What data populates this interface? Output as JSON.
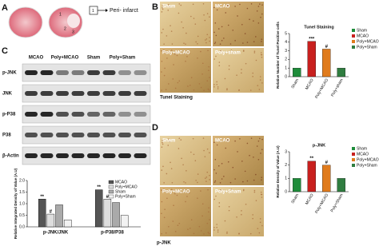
{
  "panel_a": {
    "label": "A",
    "regions": [
      "1",
      "2",
      "3"
    ],
    "marker": "1",
    "annotation": "Peri- infarct"
  },
  "panel_b": {
    "label": "B",
    "images": [
      "Sham",
      "MCAO",
      "Poly+MCAO",
      "Poly+sham"
    ],
    "caption": "Tunel Staining"
  },
  "panel_c": {
    "label": "C",
    "lanes": [
      "MCAO",
      "Poly+MCAO",
      "Sham",
      "Poly+Sham"
    ],
    "rows": [
      "p-JNK",
      "JNK",
      "p-P38",
      "P38",
      "β-Actin"
    ]
  },
  "panel_d": {
    "label": "D",
    "images": [
      "Sham",
      "MCAO",
      "Poly+MCAO",
      "Poly+Sham"
    ],
    "caption": "p-JNK"
  },
  "chart_data": [
    {
      "type": "bar",
      "title": "Tunel Staining",
      "ylabel": "Relative Number of Tunel Positive cells",
      "categories": [
        "Sham",
        "MCAO",
        "Poly+MCAO",
        "Poly+sham"
      ],
      "values": [
        1,
        4.1,
        3.2,
        1
      ],
      "colors": [
        "#1e8c3a",
        "#c8201e",
        "#e07b1c",
        "#2f7d40"
      ],
      "annotations": [
        null,
        "***",
        "#",
        null
      ],
      "legend_labels": [
        "Sham",
        "MCAO",
        "Poly+MCAO",
        "Poly+Sham"
      ],
      "legend": "right",
      "ylim": [
        0,
        5
      ],
      "yticks": [
        0,
        1,
        2,
        3,
        4,
        5
      ]
    },
    {
      "type": "bar",
      "title": "p-JNK",
      "ylabel": "Relative Density of Value (A.U)",
      "categories": [
        "Sham",
        "MCAO",
        "Poly+MCAO",
        "Poly+Sham"
      ],
      "values": [
        1,
        2.3,
        2.0,
        1
      ],
      "colors": [
        "#1e8c3a",
        "#c8201e",
        "#e07b1c",
        "#2f7d40"
      ],
      "annotations": [
        null,
        "**",
        "#",
        null
      ],
      "legend_labels": [
        "Sham",
        "MCAO",
        "Poly+MCAO",
        "Poly+Sham"
      ],
      "legend": "right",
      "ylim": [
        0,
        3
      ],
      "yticks": [
        0,
        1,
        2,
        3
      ]
    },
    {
      "type": "grouped-bar",
      "ylabel": "Relative Integrated Density of Value (A.U)",
      "categories": [
        "p-JNK/JNK",
        "p-P38/P38"
      ],
      "series": [
        {
          "name": "MCAO",
          "color": "#555555",
          "values": [
            1.2,
            1.6
          ],
          "annotations": [
            "**",
            "**"
          ]
        },
        {
          "name": "Poly+MCAO",
          "color": "#dddddd",
          "values": [
            0.55,
            1.2
          ],
          "annotations": [
            "#",
            "#"
          ]
        },
        {
          "name": "Sham",
          "color": "#aaaaaa",
          "values": [
            0.95,
            1.05
          ]
        },
        {
          "name": "Poly+Sham",
          "color": "#f2f2f2",
          "values": [
            0.3,
            0.5
          ]
        }
      ],
      "legend": "upper right",
      "ylim": [
        0,
        2
      ],
      "yticks": [
        {
          "value": 0,
          "label": "0.0"
        },
        {
          "value": 0.5,
          "label": "0.5"
        },
        {
          "value": 1,
          "label": "1.0"
        },
        {
          "value": 1.5,
          "label": "1.5"
        },
        {
          "value": 2,
          "label": "2.0"
        }
      ]
    }
  ]
}
